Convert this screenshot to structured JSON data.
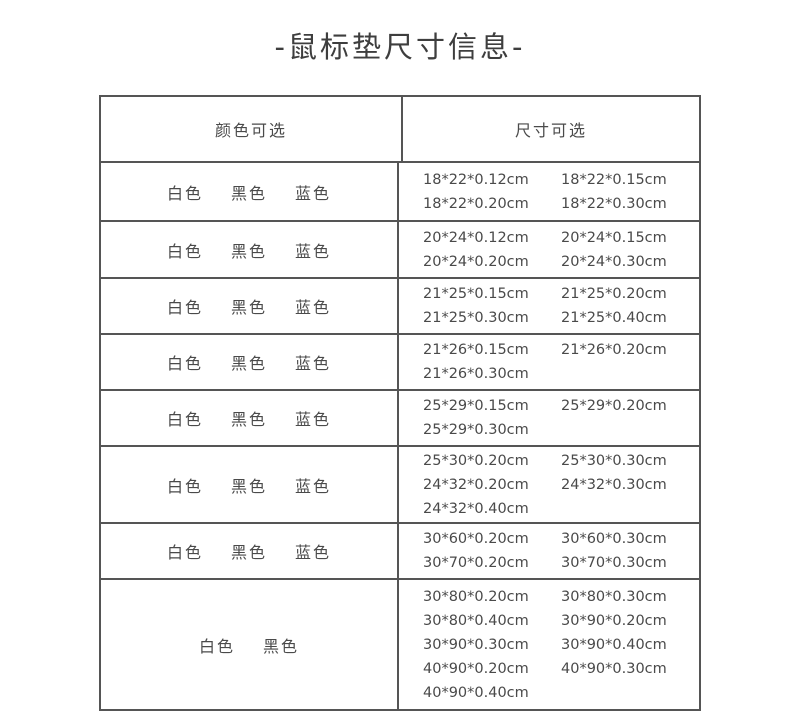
{
  "title": "-鼠标垫尺寸信息-",
  "headers": {
    "colors": "颜色可选",
    "sizes": "尺寸可选"
  },
  "rows": [
    {
      "colors": [
        "白色",
        "黑色",
        "蓝色"
      ],
      "sizes": [
        "18*22*0.12cm",
        "18*22*0.15cm",
        "18*22*0.20cm",
        "18*22*0.30cm"
      ]
    },
    {
      "colors": [
        "白色",
        "黑色",
        "蓝色"
      ],
      "sizes": [
        "20*24*0.12cm",
        "20*24*0.15cm",
        "20*24*0.20cm",
        "20*24*0.30cm"
      ]
    },
    {
      "colors": [
        "白色",
        "黑色",
        "蓝色"
      ],
      "sizes": [
        "21*25*0.15cm",
        "21*25*0.20cm",
        "21*25*0.30cm",
        "21*25*0.40cm"
      ]
    },
    {
      "colors": [
        "白色",
        "黑色",
        "蓝色"
      ],
      "sizes": [
        "21*26*0.15cm",
        "21*26*0.20cm",
        "21*26*0.30cm"
      ]
    },
    {
      "colors": [
        "白色",
        "黑色",
        "蓝色"
      ],
      "sizes": [
        "25*29*0.15cm",
        "25*29*0.20cm",
        "25*29*0.30cm"
      ]
    },
    {
      "colors": [
        "白色",
        "黑色",
        "蓝色"
      ],
      "sizes": [
        "25*30*0.20cm",
        "25*30*0.30cm",
        "24*32*0.20cm",
        "24*32*0.30cm",
        "24*32*0.40cm"
      ]
    },
    {
      "colors": [
        "白色",
        "黑色",
        "蓝色"
      ],
      "sizes": [
        "30*60*0.20cm",
        "30*60*0.30cm",
        "30*70*0.20cm",
        "30*70*0.30cm"
      ]
    },
    {
      "colors": [
        "白色",
        "黑色"
      ],
      "sizes": [
        "30*80*0.20cm",
        "30*80*0.30cm",
        "30*80*0.40cm",
        "30*90*0.20cm",
        "30*90*0.30cm",
        "30*90*0.40cm",
        "40*90*0.20cm",
        "40*90*0.30cm",
        "40*90*0.40cm"
      ]
    }
  ]
}
